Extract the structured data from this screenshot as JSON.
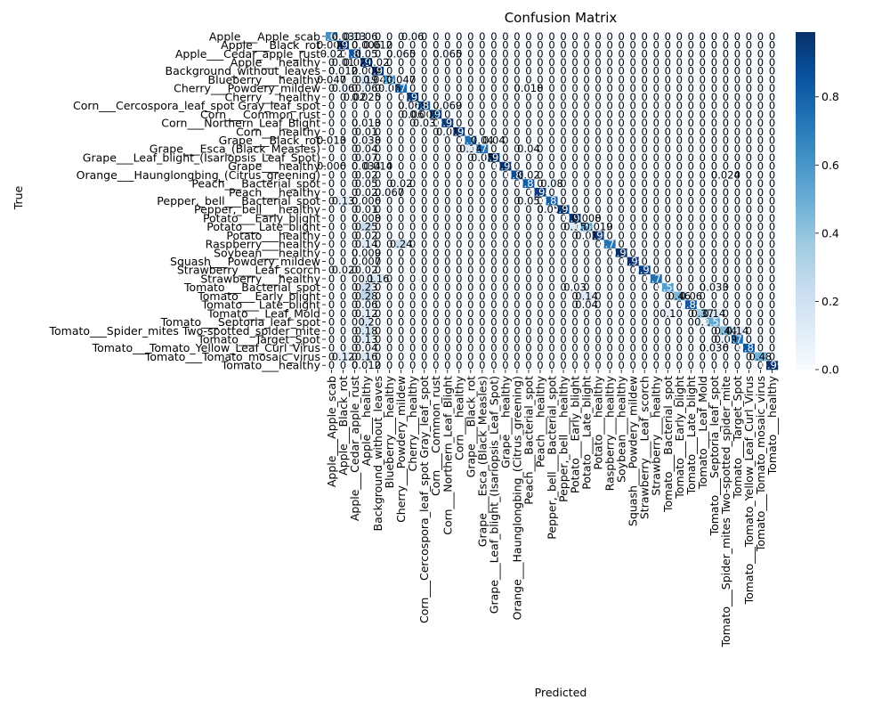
{
  "chart_data": {
    "type": "heatmap",
    "title": "Confusion Matrix",
    "xlabel": "Predicted",
    "ylabel": "True",
    "colormap": "Blues",
    "colormap_stops": [
      "#f7fbff",
      "#deebf7",
      "#c6dbef",
      "#9ecae1",
      "#6baed6",
      "#4292c6",
      "#2171b5",
      "#08519c",
      "#08306b"
    ],
    "value_range": [
      0.0,
      0.99
    ],
    "colorbar_ticks": [
      0.0,
      0.2,
      0.4,
      0.6,
      0.8
    ],
    "colorbar_tick_labels": [
      "0.0",
      "0.2",
      "0.4",
      "0.6",
      "0.8"
    ],
    "categories": [
      "Apple___Apple_scab",
      "Apple___Black_rot",
      "Apple___Cedar_apple_rust",
      "Apple___healthy",
      "Background_without_leaves",
      "Blueberry___healthy",
      "Cherry___Powdery_mildew",
      "Cherry___healthy",
      "Corn___Cercospora_leaf_spot Gray_leaf_spot",
      "Corn___Common_rust",
      "Corn___Northern_Leaf_Blight",
      "Corn___healthy",
      "Grape___Black_rot",
      "Grape___Esca_(Black_Measles)",
      "Grape___Leaf_blight_(Isariopsis_Leaf_Spot)",
      "Grape___healthy",
      "Orange___Haunglongbing_(Citrus_greening)",
      "Peach___Bacterial_spot",
      "Peach___healthy",
      "Pepper,_bell___Bacterial_spot",
      "Pepper,_bell___healthy",
      "Potato___Early_blight",
      "Potato___Late_blight",
      "Potato___healthy",
      "Raspberry___healthy",
      "Soybean___healthy",
      "Squash___Powdery_mildew",
      "Strawberry___Leaf_scorch",
      "Strawberry___healthy",
      "Tomato___Bacterial_spot",
      "Tomato___Early_blight",
      "Tomato___Late_blight",
      "Tomato___Leaf_Mold",
      "Tomato___Septoria_leaf_spot",
      "Tomato___Spider_mites Two-spotted_spider_mite",
      "Tomato___Target_Spot",
      "Tomato___Tomato_Yellow_Leaf_Curl_Virus",
      "Tomato___Tomato_mosaic_virus",
      "Tomato___healthy"
    ],
    "diagonal": [
      0.63,
      0.97,
      0.84,
      0.93,
      0.97,
      0.63,
      0.77,
      0.97,
      0.83,
      0.93,
      0.95,
      0.96,
      0.75,
      0.73,
      0.97,
      0.99,
      0.88,
      0.82,
      0.94,
      0.81,
      0.93,
      0.98,
      0.52,
      0.96,
      0.73,
      0.99,
      0.99,
      0.93,
      0.75,
      0.56,
      0.46,
      0.84,
      0.37,
      0.52,
      0.44,
      0.73,
      0.85,
      0.48,
      0.99
    ],
    "offdiagonal": [
      {
        "r": 0,
        "c": 1,
        "v": 0.03
      },
      {
        "r": 0,
        "c": 2,
        "v": 0.13
      },
      {
        "r": 0,
        "c": 3,
        "v": 0.06
      },
      {
        "r": 0,
        "c": 7,
        "v": 0.06
      },
      {
        "r": 1,
        "c": 0,
        "v": 0.006
      },
      {
        "r": 1,
        "c": 3,
        "v": 0.006
      },
      {
        "r": 1,
        "c": 4,
        "v": 0.012
      },
      {
        "r": 2,
        "c": 0,
        "v": 0.02
      },
      {
        "r": 2,
        "c": 3,
        "v": 0.05
      },
      {
        "r": 2,
        "c": 6,
        "v": 0.065
      },
      {
        "r": 2,
        "c": 10,
        "v": 0.065
      },
      {
        "r": 3,
        "c": 1,
        "v": 0.01
      },
      {
        "r": 3,
        "c": 2,
        "v": 0.02
      },
      {
        "r": 3,
        "c": 4,
        "v": 0.02
      },
      {
        "r": 4,
        "c": 1,
        "v": 0.012
      },
      {
        "r": 4,
        "c": 3,
        "v": 0.006
      },
      {
        "r": 5,
        "c": 0,
        "v": 0.047
      },
      {
        "r": 5,
        "c": 3,
        "v": 0.19
      },
      {
        "r": 5,
        "c": 4,
        "v": 0.047
      },
      {
        "r": 5,
        "c": 6,
        "v": 0.047
      },
      {
        "r": 6,
        "c": 1,
        "v": 0.06
      },
      {
        "r": 6,
        "c": 3,
        "v": 0.06
      },
      {
        "r": 6,
        "c": 5,
        "v": 0.06
      },
      {
        "r": 6,
        "c": 17,
        "v": 0.018
      },
      {
        "r": 7,
        "c": 2,
        "v": 0.02
      },
      {
        "r": 7,
        "c": 3,
        "v": 0.025
      },
      {
        "r": 8,
        "c": 7,
        "v": 0.069
      },
      {
        "r": 8,
        "c": 10,
        "v": 0.069
      },
      {
        "r": 9,
        "c": 7,
        "v": 0.06
      },
      {
        "r": 9,
        "c": 8,
        "v": 0.005
      },
      {
        "r": 10,
        "c": 3,
        "v": 0.013
      },
      {
        "r": 10,
        "c": 8,
        "v": 0.03
      },
      {
        "r": 11,
        "c": 3,
        "v": 0.01
      },
      {
        "r": 11,
        "c": 10,
        "v": 0.01
      },
      {
        "r": 12,
        "c": 0,
        "v": 0.013
      },
      {
        "r": 12,
        "c": 3,
        "v": 0.038
      },
      {
        "r": 12,
        "c": 13,
        "v": 0.04
      },
      {
        "r": 12,
        "c": 14,
        "v": 0.04
      },
      {
        "r": 13,
        "c": 3,
        "v": 0.04
      },
      {
        "r": 13,
        "c": 12,
        "v": 0.14
      },
      {
        "r": 13,
        "c": 17,
        "v": 0.04
      },
      {
        "r": 14,
        "c": 3,
        "v": 0.07
      },
      {
        "r": 14,
        "c": 13,
        "v": 0.05
      },
      {
        "r": 15,
        "c": 0,
        "v": 0.006
      },
      {
        "r": 15,
        "c": 3,
        "v": 0.034
      },
      {
        "r": 15,
        "c": 4,
        "v": 0.014
      },
      {
        "r": 16,
        "c": 3,
        "v": 0.02
      },
      {
        "r": 16,
        "c": 17,
        "v": 0.02
      },
      {
        "r": 16,
        "c": 34,
        "v": 0.024
      },
      {
        "r": 17,
        "c": 3,
        "v": 0.05
      },
      {
        "r": 17,
        "c": 6,
        "v": 0.02
      },
      {
        "r": 17,
        "c": 19,
        "v": 0.08
      },
      {
        "r": 18,
        "c": 3,
        "v": 0.02
      },
      {
        "r": 18,
        "c": 5,
        "v": 0.067
      },
      {
        "r": 19,
        "c": 1,
        "v": 0.13
      },
      {
        "r": 19,
        "c": 3,
        "v": 0.006
      },
      {
        "r": 19,
        "c": 17,
        "v": 0.05
      },
      {
        "r": 20,
        "c": 3,
        "v": 0.01
      },
      {
        "r": 20,
        "c": 19,
        "v": 0.053
      },
      {
        "r": 21,
        "c": 3,
        "v": 0.008
      },
      {
        "r": 21,
        "c": 22,
        "v": 0.008
      },
      {
        "r": 22,
        "c": 3,
        "v": 0.25
      },
      {
        "r": 22,
        "c": 21,
        "v": 0.15
      },
      {
        "r": 22,
        "c": 23,
        "v": 0.019
      },
      {
        "r": 23,
        "c": 3,
        "v": 0.02
      },
      {
        "r": 23,
        "c": 22,
        "v": 0.01
      },
      {
        "r": 24,
        "c": 3,
        "v": 0.14
      },
      {
        "r": 24,
        "c": 6,
        "v": 0.24
      },
      {
        "r": 25,
        "c": 3,
        "v": 0.009
      },
      {
        "r": 26,
        "c": 3,
        "v": 0.007
      },
      {
        "r": 27,
        "c": 1,
        "v": 0.02
      },
      {
        "r": 27,
        "c": 3,
        "v": 0.02
      },
      {
        "r": 28,
        "c": 3,
        "v": 0.1
      },
      {
        "r": 28,
        "c": 4,
        "v": 0.16
      },
      {
        "r": 29,
        "c": 3,
        "v": 0.23
      },
      {
        "r": 29,
        "c": 21,
        "v": 0.03
      },
      {
        "r": 29,
        "c": 33,
        "v": 0.033
      },
      {
        "r": 30,
        "c": 3,
        "v": 0.28
      },
      {
        "r": 30,
        "c": 22,
        "v": 0.14
      },
      {
        "r": 30,
        "c": 31,
        "v": 0.06
      },
      {
        "r": 31,
        "c": 3,
        "v": 0.06
      },
      {
        "r": 31,
        "c": 22,
        "v": 0.04
      },
      {
        "r": 32,
        "c": 3,
        "v": 0.12
      },
      {
        "r": 32,
        "c": 29,
        "v": 0.1
      },
      {
        "r": 32,
        "c": 33,
        "v": 0.14
      },
      {
        "r": 33,
        "c": 3,
        "v": 0.2
      },
      {
        "r": 33,
        "c": 32,
        "v": 0.1
      },
      {
        "r": 34,
        "c": 3,
        "v": 0.18
      },
      {
        "r": 34,
        "c": 35,
        "v": 0.14
      },
      {
        "r": 35,
        "c": 3,
        "v": 0.13
      },
      {
        "r": 35,
        "c": 34,
        "v": 0.09
      },
      {
        "r": 36,
        "c": 3,
        "v": 0.04
      },
      {
        "r": 36,
        "c": 33,
        "v": 0.036
      },
      {
        "r": 37,
        "c": 3,
        "v": 0.16
      },
      {
        "r": 37,
        "c": 1,
        "v": 0.12
      },
      {
        "r": 38,
        "c": 3,
        "v": 0.012
      }
    ]
  }
}
